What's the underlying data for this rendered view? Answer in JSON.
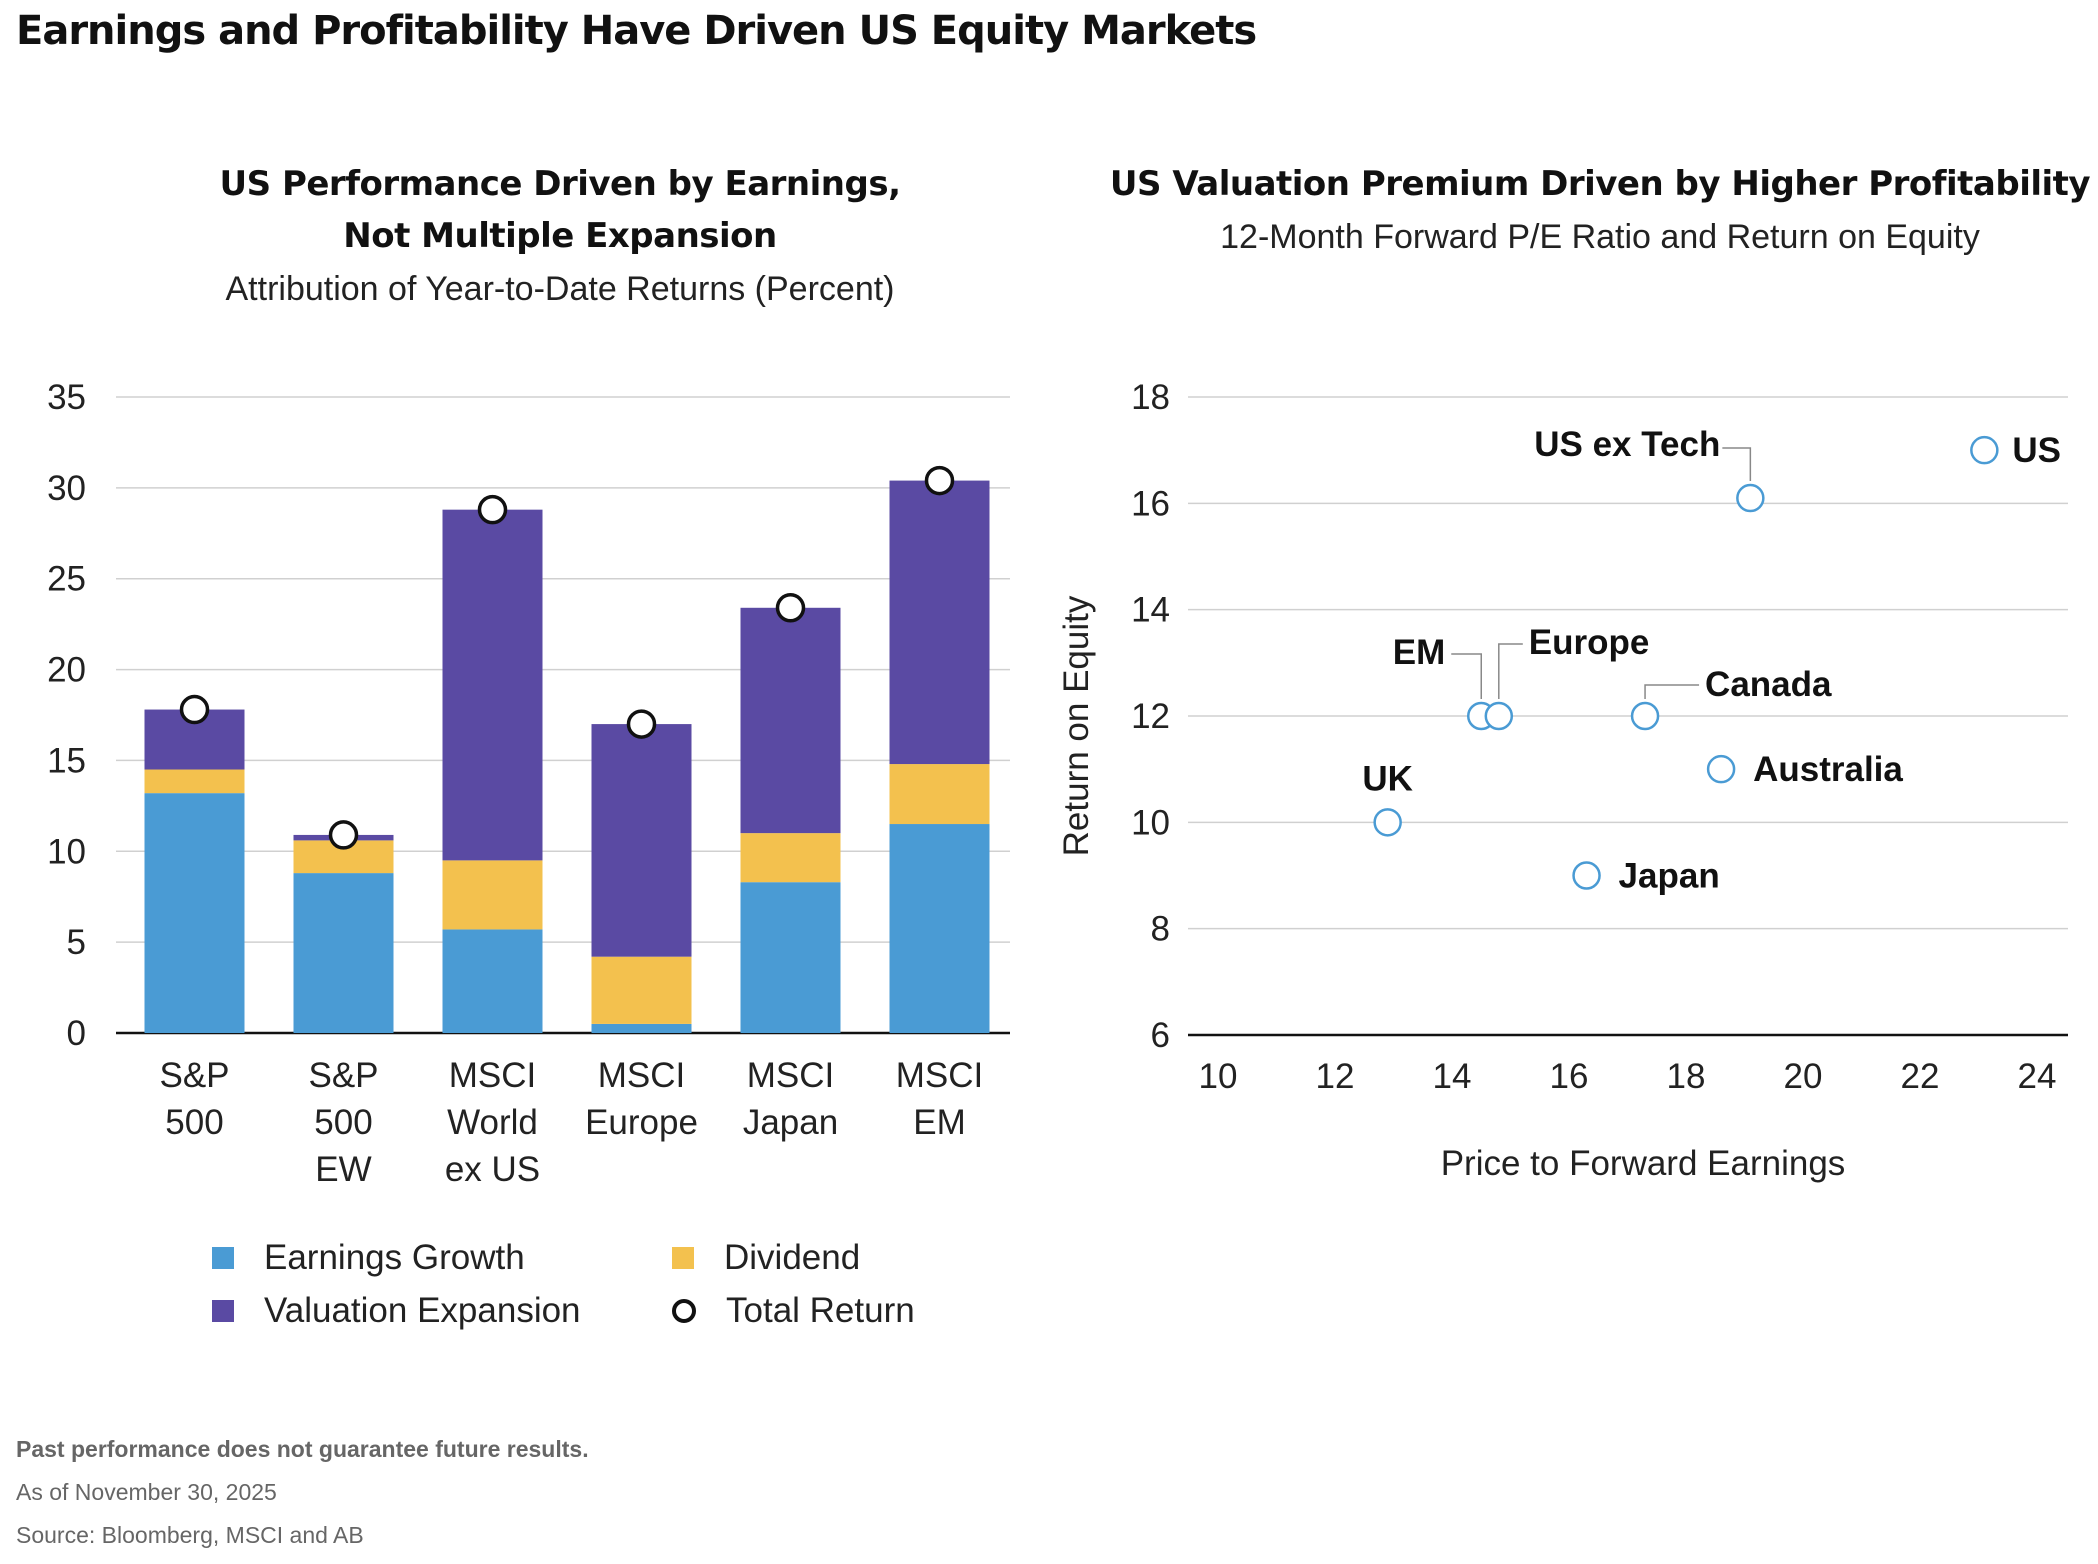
{
  "page": {
    "title": "Earnings and Profitability Have Driven US Equity Markets"
  },
  "left": {
    "title_line1": "US Performance Driven by Earnings,",
    "title_line2": "Not Multiple Expansion",
    "caption": "Attribution of Year-to-Date Returns (Percent)"
  },
  "right": {
    "title": "US Valuation Premium Driven by Higher Profitability",
    "caption": "12-Month Forward P/E Ratio and Return on Equity"
  },
  "legend": {
    "earnings": "Earnings Growth",
    "dividend": "Dividend",
    "valuation": "Valuation Expansion",
    "total": "Total Return"
  },
  "footer": {
    "disclaimer": "Past performance does not guarantee future results.",
    "asof": "As of November 30, 2025",
    "source": "Source: Bloomberg, MSCI and AB"
  },
  "colors": {
    "earnings": "#4a9bd4",
    "dividend": "#f3c14e",
    "valuation": "#5a4aa3",
    "scatter_marker": "#4a9bd4",
    "grid": "#d0d0d0",
    "axis": "#111111"
  },
  "chart_data": [
    {
      "type": "bar",
      "stacked": true,
      "title": "US Performance Driven by Earnings, Not Multiple Expansion",
      "subtitle": "Attribution of Year-to-Date Returns (Percent)",
      "categories": [
        [
          "S&P",
          "500"
        ],
        [
          "S&P",
          "500",
          "EW"
        ],
        [
          "MSCI",
          "World",
          "ex US"
        ],
        [
          "MSCI",
          "Europe"
        ],
        [
          "MSCI",
          "Japan"
        ],
        [
          "MSCI",
          "EM"
        ]
      ],
      "series": [
        {
          "name": "Earnings Growth",
          "values": [
            13.2,
            8.8,
            5.7,
            0.5,
            8.3,
            11.5
          ]
        },
        {
          "name": "Dividend",
          "values": [
            1.3,
            1.8,
            3.8,
            3.7,
            2.7,
            3.3
          ]
        },
        {
          "name": "Valuation Expansion",
          "values": [
            3.3,
            0.3,
            19.3,
            12.8,
            12.4,
            15.6
          ]
        }
      ],
      "total_return": [
        17.8,
        10.9,
        28.8,
        17.0,
        23.4,
        30.4
      ],
      "xlabel": "",
      "ylabel": "",
      "ylim": [
        0,
        35
      ],
      "yticks": [
        0,
        5,
        10,
        15,
        20,
        25,
        30,
        35
      ],
      "grid": true,
      "legend_position": "bottom"
    },
    {
      "type": "scatter",
      "title": "US Valuation Premium Driven by Higher Profitability",
      "subtitle": "12-Month Forward P/E Ratio and Return on Equity",
      "xlabel": "Price to Forward Earnings",
      "ylabel": "Return on Equity",
      "xlim": [
        9.5,
        24.5
      ],
      "ylim": [
        6,
        18
      ],
      "xticks": [
        10,
        12,
        14,
        16,
        18,
        20,
        22,
        24
      ],
      "yticks": [
        6,
        8,
        10,
        12,
        14,
        16,
        18
      ],
      "grid": true,
      "points": [
        {
          "label": "US",
          "x": 23.1,
          "y": 17.0
        },
        {
          "label": "US ex Tech",
          "x": 19.1,
          "y": 16.1
        },
        {
          "label": "EM",
          "x": 14.5,
          "y": 12.0
        },
        {
          "label": "Europe",
          "x": 14.8,
          "y": 12.0
        },
        {
          "label": "Canada",
          "x": 17.3,
          "y": 12.0
        },
        {
          "label": "Australia",
          "x": 18.6,
          "y": 11.0
        },
        {
          "label": "UK",
          "x": 12.9,
          "y": 10.0
        },
        {
          "label": "Japan",
          "x": 16.3,
          "y": 9.0
        }
      ]
    }
  ]
}
